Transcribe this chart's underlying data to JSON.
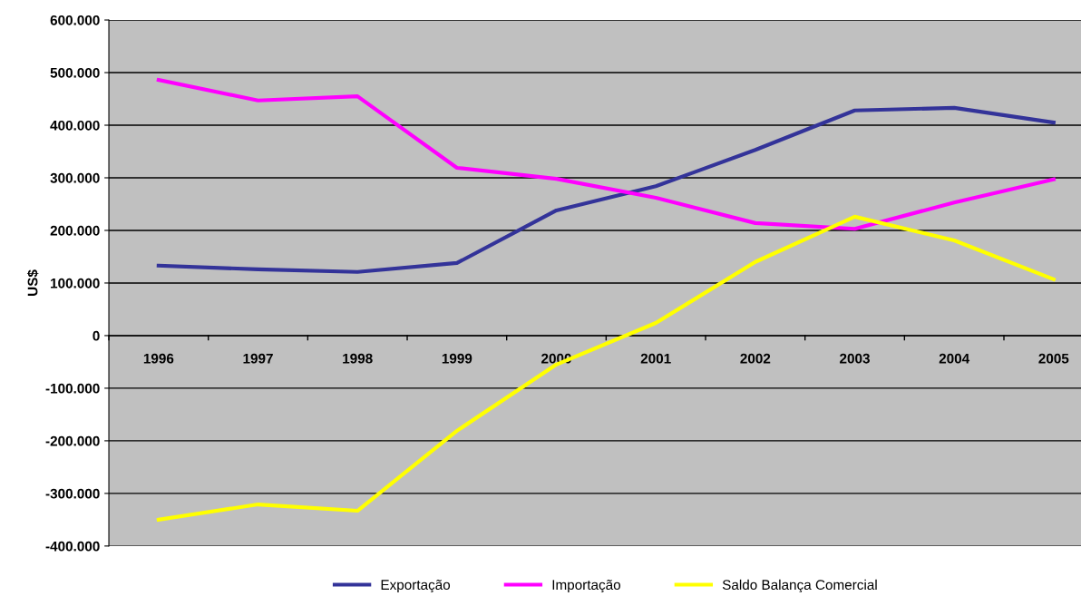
{
  "chart_data": {
    "type": "line",
    "ylabel": "US$",
    "categories": [
      "1996",
      "1997",
      "1998",
      "1999",
      "2000",
      "2001",
      "2002",
      "2003",
      "2004",
      "2005"
    ],
    "series": [
      {
        "name": "Exportação",
        "color": "#333399",
        "values": [
          133000,
          126000,
          121000,
          138000,
          238000,
          284000,
          353000,
          428000,
          433000,
          405000
        ]
      },
      {
        "name": "Importação",
        "color": "#ff00ff",
        "values": [
          486000,
          447000,
          455000,
          319000,
          298000,
          262000,
          214000,
          203000,
          253000,
          297000
        ]
      },
      {
        "name": "Saldo Balança Comercial",
        "color": "#ffff00",
        "values": [
          -350000,
          -321000,
          -333000,
          -181000,
          -55000,
          24000,
          140000,
          226000,
          181000,
          107000
        ]
      }
    ],
    "ylim": [
      -400000,
      600000
    ],
    "yticks": [
      {
        "value": -400000,
        "label": "-400.000"
      },
      {
        "value": -300000,
        "label": "-300.000"
      },
      {
        "value": -200000,
        "label": "-200.000"
      },
      {
        "value": -100000,
        "label": "-100.000"
      },
      {
        "value": 0,
        "label": "0"
      },
      {
        "value": 100000,
        "label": "100.000"
      },
      {
        "value": 200000,
        "label": "200.000"
      },
      {
        "value": 300000,
        "label": "300.000"
      },
      {
        "value": 400000,
        "label": "400.000"
      },
      {
        "value": 500000,
        "label": "500.000"
      },
      {
        "value": 600000,
        "label": "600.000"
      }
    ],
    "grid": "y",
    "legend": "bottom",
    "marker": "none",
    "line_style": "solid"
  }
}
